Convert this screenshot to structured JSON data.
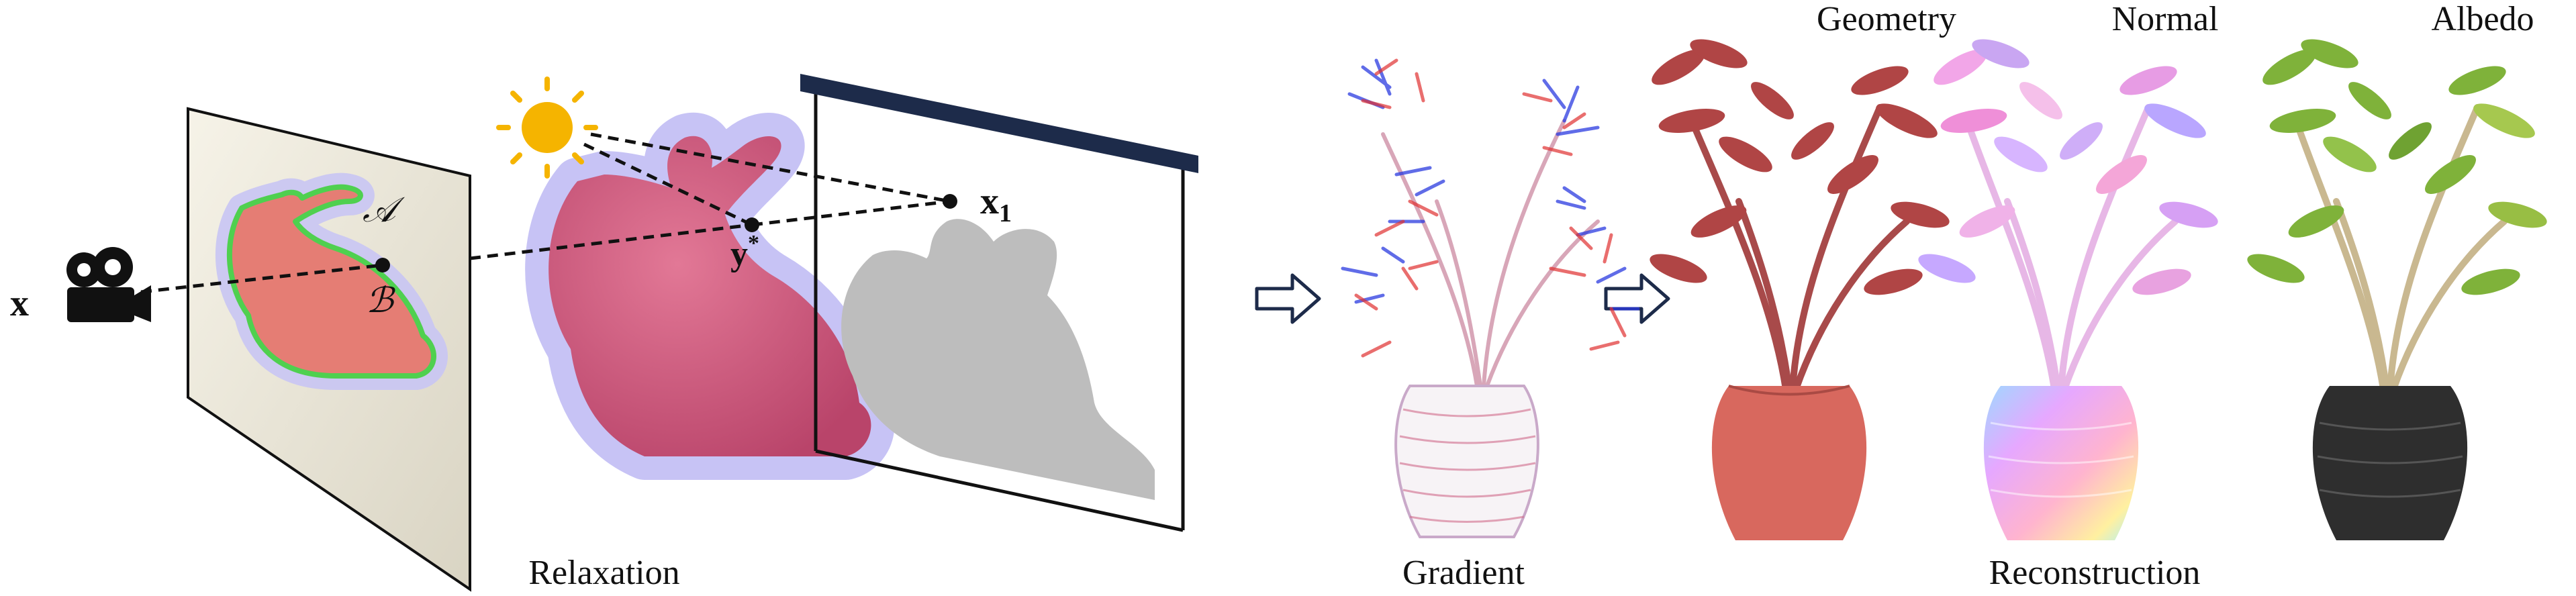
{
  "figure": {
    "relaxation": {
      "caption": "Relaxation",
      "point_x": "x",
      "point_x1": "x",
      "point_x1_sub": "1",
      "point_y": "y",
      "point_y_sup": "*",
      "region_a": "𝒜",
      "region_b": "ℬ"
    },
    "gradient": {
      "caption": "Gradient"
    },
    "reconstruction": {
      "caption": "Reconstruction",
      "panels": [
        {
          "title": "Geometry"
        },
        {
          "title": "Normal"
        },
        {
          "title": "Albedo"
        }
      ]
    }
  },
  "colors": {
    "bunny": "#d0597a",
    "bunny_halo": "#bcb6f0",
    "shadow": "#bdbdbd",
    "sun": "#f5b400",
    "arrow_outline": "#1d2b4a",
    "geometry_leaf": "#b04545",
    "albedo_leaf": "#7fb23a",
    "albedo_pot": "#2e2e2e"
  },
  "icons": [
    "camera-icon",
    "sun-icon",
    "right-arrow-icon",
    "right-arrow-icon"
  ]
}
